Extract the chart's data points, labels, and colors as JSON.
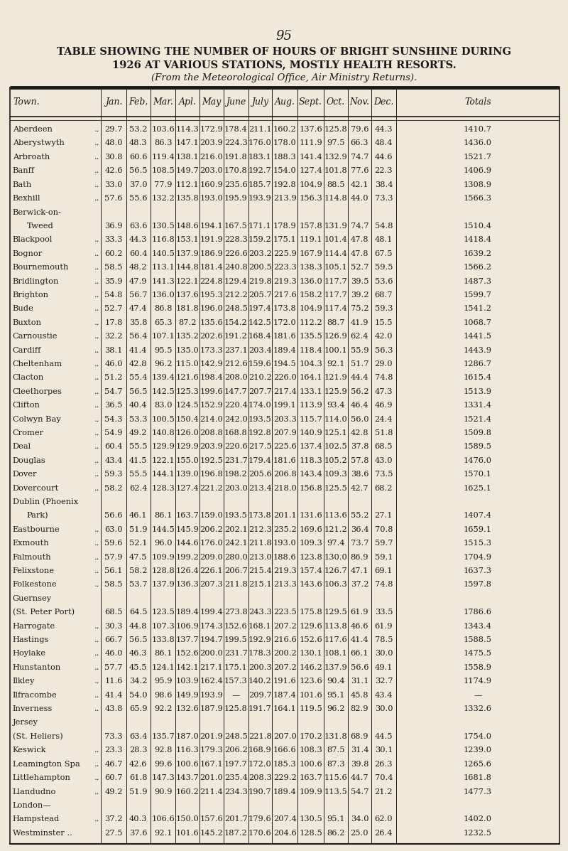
{
  "page_number": "95",
  "title_line1": "TABLE SHOWING THE NUMBER OF HOURS OF BRIGHT SUNSHINE DURING",
  "title_line2": "1926 AT VARIOUS STATIONS, MOSTLY HEALTH RESORTS.",
  "subtitle": "(From the Meteorological Office, Air Ministry Returns).",
  "columns": [
    "Town.",
    "Jan.",
    "Feb.",
    "Mar.",
    "Apl.",
    "May",
    "June",
    "July",
    "Aug.",
    "Sept.",
    "Oct.",
    "Nov.",
    "Dec.",
    "Totals"
  ],
  "rows": [
    [
      "Aberdeen",
      "..",
      "29.7",
      "53.2",
      "103.6",
      "114.3",
      "172.9",
      "178.4",
      "211.1",
      "160.2",
      "137.6",
      "125.8",
      "79.6",
      "44.3",
      "1410.7"
    ],
    [
      "Aberystwyth",
      "..",
      "48.0",
      "48.3",
      "86.3",
      "147.1",
      "203.9",
      "224.3",
      "176.0",
      "178.0",
      "111.9",
      "97.5",
      "66.3",
      "48.4",
      "1436.0"
    ],
    [
      "Arbroath",
      "..",
      "30.8",
      "60.6",
      "119.4",
      "138.1",
      "216.0",
      "191.8",
      "183.1",
      "188.3",
      "141.4",
      "132.9",
      "74.7",
      "44.6",
      "1521.7"
    ],
    [
      "Banff",
      "..",
      "42.6",
      "56.5",
      "108.5",
      "149.7",
      "203.0",
      "170.8",
      "192.7",
      "154.0",
      "127.4",
      "101.8",
      "77.6",
      "22.3",
      "1406.9"
    ],
    [
      "Bath",
      "..",
      "33.0",
      "37.0",
      "77.9",
      "112.1",
      "160.9",
      "235.6",
      "185.7",
      "192.8",
      "104.9",
      "88.5",
      "42.1",
      "38.4",
      "1308.9"
    ],
    [
      "Bexhill",
      "..",
      "57.6",
      "55.6",
      "132.2",
      "135.8",
      "193.0",
      "195.9",
      "193.9",
      "213.9",
      "156.3",
      "114.8",
      "44.0",
      "73.3",
      "1566.3"
    ],
    [
      "Berwick-on-",
      "",
      "",
      "",
      "",
      "",
      "",
      "",
      "",
      "",
      "",
      "",
      "",
      "",
      ""
    ],
    [
      "    Tweed",
      "",
      "36.9",
      "63.6",
      "130.5",
      "148.6",
      "194.1",
      "167.5",
      "171.1",
      "178.9",
      "157.8",
      "131.9",
      "74.7",
      "54.8",
      "1510.4"
    ],
    [
      "Blackpool",
      "..",
      "33.3",
      "44.3",
      "116.8",
      "153.1",
      "191.9",
      "228.3",
      "159.2",
      "175.1",
      "119.1",
      "101.4",
      "47.8",
      "48.1",
      "1418.4"
    ],
    [
      "Bognor",
      "..",
      "60.2",
      "60.4",
      "140.5",
      "137.9",
      "186.9",
      "226.6",
      "203.2",
      "225.9",
      "167.9",
      "114.4",
      "47.8",
      "67.5",
      "1639.2"
    ],
    [
      "Bournemouth",
      "..",
      "58.5",
      "48.2",
      "113.1",
      "144.8",
      "181.4",
      "240.8",
      "200.5",
      "223.3",
      "138.3",
      "105.1",
      "52.7",
      "59.5",
      "1566.2"
    ],
    [
      "Bridlington",
      "..",
      "35.9",
      "47.9",
      "141.3",
      "122.1",
      "224.8",
      "129.4",
      "219.8",
      "219.3",
      "136.0",
      "117.7",
      "39.5",
      "53.6",
      "1487.3"
    ],
    [
      "Brighton",
      "..",
      "54.8",
      "56.7",
      "136.0",
      "137.6",
      "195.3",
      "212.2",
      "205.7",
      "217.6",
      "158.2",
      "117.7",
      "39.2",
      "68.7",
      "1599.7"
    ],
    [
      "Bude",
      "..",
      "52.7",
      "47.4",
      "86.8",
      "181.8",
      "196.0",
      "248.5",
      "197.4",
      "173.8",
      "104.9",
      "117.4",
      "75.2",
      "59.3",
      "1541.2"
    ],
    [
      "Buxton",
      "..",
      "17.8",
      "35.8",
      "65.3",
      "87.2",
      "135.6",
      "154.2",
      "142.5",
      "172.0",
      "112.2",
      "88.7",
      "41.9",
      "15.5",
      "1068.7"
    ],
    [
      "Carnoustie",
      "..",
      "32.2",
      "56.4",
      "107.1",
      "135.2",
      "202.6",
      "191.2",
      "168.4",
      "181.6",
      "135.5",
      "126.9",
      "62.4",
      "42.0",
      "1441.5"
    ],
    [
      "Cardiff",
      "..",
      "38.1",
      "41.4",
      "95.5",
      "135.0",
      "173.3",
      "237.1",
      "203.4",
      "189.4",
      "118.4",
      "100.1",
      "55.9",
      "56.3",
      "1443.9"
    ],
    [
      "Cheltenham",
      "..",
      "46.0",
      "42.8",
      "96.2",
      "115.0",
      "142.9",
      "212.6",
      "159.6",
      "194.5",
      "104.3",
      "92.1",
      "51.7",
      "29.0",
      "1286.7"
    ],
    [
      "Clacton",
      "..",
      "51.2",
      "55.4",
      "139.4",
      "121.6",
      "198.4",
      "208.0",
      "210.2",
      "226.0",
      "164.1",
      "121.9",
      "44.4",
      "74.8",
      "1615.4"
    ],
    [
      "Cleethorpes",
      "..",
      "54.7",
      "56.5",
      "142.5",
      "125.3",
      "199.6",
      "147.7",
      "207.7",
      "217.4",
      "133.1",
      "125.9",
      "56.2",
      "47.3",
      "1513.9"
    ],
    [
      "Clifton",
      "..",
      "36.5",
      "40.4",
      "83.0",
      "124.5",
      "152.9",
      "220.4",
      "174.0",
      "199.1",
      "113.9",
      "93.4",
      "46.4",
      "46.9",
      "1331.4"
    ],
    [
      "Colwyn Bay",
      "..",
      "54.3",
      "53.3",
      "100.5",
      "150.4",
      "214.0",
      "242.0",
      "193.5",
      "203.3",
      "115.7",
      "114.0",
      "56.0",
      "24.4",
      "1521.4"
    ],
    [
      "Cromer",
      "..",
      "54.9",
      "49.2",
      "140.8",
      "126.0",
      "208.8",
      "168.8",
      "192.8",
      "207.9",
      "140.9",
      "125.1",
      "42.8",
      "51.8",
      "1509.8"
    ],
    [
      "Deal",
      "..",
      "60.4",
      "55.5",
      "129.9",
      "129.9",
      "203.9",
      "220.6",
      "217.5",
      "225.6",
      "137.4",
      "102.5",
      "37.8",
      "68.5",
      "1589.5"
    ],
    [
      "Douglas",
      "..",
      "43.4",
      "41.5",
      "122.1",
      "155.0",
      "192.5",
      "231.7",
      "179.4",
      "181.6",
      "118.3",
      "105.2",
      "57.8",
      "43.0",
      "1476.0"
    ],
    [
      "Dover",
      "..",
      "59.3",
      "55.5",
      "144.1",
      "139.0",
      "196.8",
      "198.2",
      "205.6",
      "206.8",
      "143.4",
      "109.3",
      "38.6",
      "73.5",
      "1570.1"
    ],
    [
      "Dovercourt",
      "..",
      "58.2",
      "62.4",
      "128.3",
      "127.4",
      "221.2",
      "203.0",
      "213.4",
      "218.0",
      "156.8",
      "125.5",
      "42.7",
      "68.2",
      "1625.1"
    ],
    [
      "Dublin (Phoenix",
      "",
      "",
      "",
      "",
      "",
      "",
      "",
      "",
      "",
      "",
      "",
      "",
      "",
      ""
    ],
    [
      "    Park)",
      "",
      "56.6",
      "46.1",
      "86.1",
      "163.7",
      "159.0",
      "193.5",
      "173.8",
      "201.1",
      "131.6",
      "113.6",
      "55.2",
      "27.1",
      "1407.4"
    ],
    [
      "Eastbourne",
      "..",
      "63.0",
      "51.9",
      "144.5",
      "145.9",
      "206.2",
      "202.1",
      "212.3",
      "235.2",
      "169.6",
      "121.2",
      "36.4",
      "70.8",
      "1659.1"
    ],
    [
      "Exmouth",
      "..",
      "59.6",
      "52.1",
      "96.0",
      "144.6",
      "176.0",
      "242.1",
      "211.8",
      "193.0",
      "109.3",
      "97.4",
      "73.7",
      "59.7",
      "1515.3"
    ],
    [
      "Falmouth",
      "..",
      "57.9",
      "47.5",
      "109.9",
      "199.2",
      "209.0",
      "280.0",
      "213.0",
      "188.6",
      "123.8",
      "130.0",
      "86.9",
      "59.1",
      "1704.9"
    ],
    [
      "Felixstone",
      "..",
      "56.1",
      "58.2",
      "128.8",
      "126.4",
      "226.1",
      "206.7",
      "215.4",
      "219.3",
      "157.4",
      "126.7",
      "47.1",
      "69.1",
      "1637.3"
    ],
    [
      "Folkestone",
      "..",
      "58.5",
      "53.7",
      "137.9",
      "136.3",
      "207.3",
      "211.8",
      "215.1",
      "213.3",
      "143.6",
      "106.3",
      "37.2",
      "74.8",
      "1597.8"
    ],
    [
      "Guernsey",
      "",
      "",
      "",
      "",
      "",
      "",
      "",
      "",
      "",
      "",
      "",
      "",
      "",
      ""
    ],
    [
      "(St. Peter Port)",
      "",
      "68.5",
      "64.5",
      "123.5",
      "189.4",
      "199.4",
      "273.8",
      "243.3",
      "223.5",
      "175.8",
      "129.5",
      "61.9",
      "33.5",
      "1786.6"
    ],
    [
      "Harrogate",
      "..",
      "30.3",
      "44.8",
      "107.3",
      "106.9",
      "174.3",
      "152.6",
      "168.1",
      "207.2",
      "129.6",
      "113.8",
      "46.6",
      "61.9",
      "1343.4"
    ],
    [
      "Hastings",
      "..",
      "66.7",
      "56.5",
      "133.8",
      "137.7",
      "194.7",
      "199.5",
      "192.9",
      "216.6",
      "152.6",
      "117.6",
      "41.4",
      "78.5",
      "1588.5"
    ],
    [
      "Hoylake",
      "..",
      "46.0",
      "46.3",
      "86.1",
      "152.6",
      "200.0",
      "231.7",
      "178.3",
      "200.2",
      "130.1",
      "108.1",
      "66.1",
      "30.0",
      "1475.5"
    ],
    [
      "Hunstanton",
      "..",
      "57.7",
      "45.5",
      "124.1",
      "142.1",
      "217.1",
      "175.1",
      "200.3",
      "207.2",
      "146.2",
      "137.9",
      "56.6",
      "49.1",
      "1558.9"
    ],
    [
      "Ilkley",
      "..",
      "11.6",
      "34.2",
      "95.9",
      "103.9",
      "162.4",
      "157.3",
      "140.2",
      "191.6",
      "123.6",
      "90.4",
      "31.1",
      "32.7",
      "1174.9"
    ],
    [
      "Ilfracombe",
      "..",
      "41.4",
      "54.0",
      "98.6",
      "149.9",
      "193.9",
      "—",
      "209.7",
      "187.4",
      "101.6",
      "95.1",
      "45.8",
      "43.4",
      "—"
    ],
    [
      "Inverness",
      "..",
      "43.8",
      "65.9",
      "92.2",
      "132.6",
      "187.9",
      "125.8",
      "191.7",
      "164.1",
      "119.5",
      "96.2",
      "82.9",
      "30.0",
      "1332.6"
    ],
    [
      "Jersey",
      "",
      "",
      "",
      "",
      "",
      "",
      "",
      "",
      "",
      "",
      "",
      "",
      "",
      ""
    ],
    [
      "(St. Heliers)",
      "",
      "73.3",
      "63.4",
      "135.7",
      "187.0",
      "201.9",
      "248.5",
      "221.8",
      "207.0",
      "170.2",
      "131.8",
      "68.9",
      "44.5",
      "1754.0"
    ],
    [
      "Keswick",
      "..",
      "23.3",
      "28.3",
      "92.8",
      "116.3",
      "179.3",
      "206.2",
      "168.9",
      "166.6",
      "108.3",
      "87.5",
      "31.4",
      "30.1",
      "1239.0"
    ],
    [
      "Leamington Spa",
      "..",
      "46.7",
      "42.6",
      "99.6",
      "100.6",
      "167.1",
      "197.7",
      "172.0",
      "185.3",
      "100.6",
      "87.3",
      "39.8",
      "26.3",
      "1265.6"
    ],
    [
      "Littlehampton",
      "..",
      "60.7",
      "61.8",
      "147.3",
      "143.7",
      "201.0",
      "235.4",
      "208.3",
      "229.2",
      "163.7",
      "115.6",
      "44.7",
      "70.4",
      "1681.8"
    ],
    [
      "Llandudno",
      "..",
      "49.2",
      "51.9",
      "90.9",
      "160.2",
      "211.4",
      "234.3",
      "190.7",
      "189.4",
      "109.9",
      "113.5",
      "54.7",
      "21.2",
      "1477.3"
    ],
    [
      "London—",
      "",
      "",
      "",
      "",
      "",
      "",
      "",
      "",
      "",
      "",
      "",
      "",
      "",
      ""
    ],
    [
      "Hampstead",
      "..",
      "37.2",
      "40.3",
      "106.6",
      "150.0",
      "157.6",
      "201.7",
      "179.6",
      "207.4",
      "130.5",
      "95.1",
      "34.0",
      "62.0",
      "1402.0"
    ],
    [
      "Westminster ..",
      "",
      "27.5",
      "37.6",
      "92.1",
      "101.6",
      "145.2",
      "187.2",
      "170.6",
      "204.6",
      "128.5",
      "86.2",
      "25.0",
      "26.4",
      "1232.5"
    ]
  ],
  "bg_color": "#f0e8d8",
  "text_color": "#1a1a1a",
  "line_color": "#1a1a1a"
}
